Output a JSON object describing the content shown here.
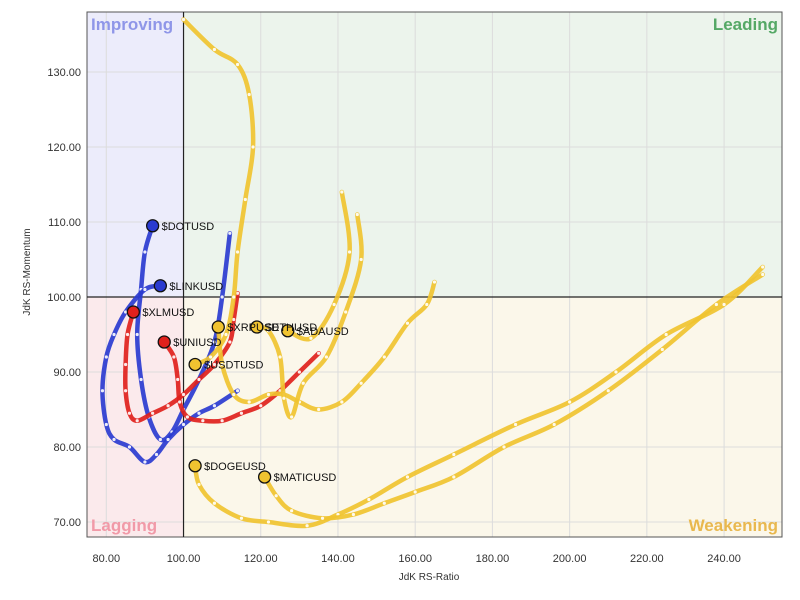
{
  "chart_data": {
    "type": "line",
    "xlabel": "JdK RS-Ratio",
    "ylabel": "JdK RS-Momentum",
    "xlim": [
      75,
      255
    ],
    "ylim": [
      68,
      138
    ],
    "center": [
      100,
      100
    ],
    "x_ticks": [
      "80.00",
      "100.00",
      "120.00",
      "140.00",
      "160.00",
      "180.00",
      "200.00",
      "220.00",
      "240.00"
    ],
    "x_tick_values": [
      80,
      100,
      120,
      140,
      160,
      180,
      200,
      220,
      240
    ],
    "y_ticks": [
      "70.00",
      "80.00",
      "90.00",
      "100.00",
      "110.00",
      "120.00",
      "130.00"
    ],
    "y_tick_values": [
      70,
      80,
      90,
      100,
      110,
      120,
      130
    ],
    "quadrants": [
      {
        "name": "Improving",
        "color": "#8f96e8",
        "fill": "#ececfb"
      },
      {
        "name": "Leading",
        "color": "#55a866",
        "fill": "#ecf4ec"
      },
      {
        "name": "Lagging",
        "color": "#f19aa8",
        "fill": "#fbeaec"
      },
      {
        "name": "Weakening",
        "color": "#e9b84e",
        "fill": "#fbf7ea"
      }
    ],
    "grid": true,
    "series": [
      {
        "name": "$DOTUSD",
        "color": "#2a3bd0",
        "head": [
          92,
          109.5
        ],
        "points": [
          [
            112,
            108.5
          ],
          [
            110,
            100
          ],
          [
            108,
            94
          ],
          [
            104,
            89
          ],
          [
            100,
            85
          ],
          [
            97,
            82
          ],
          [
            94,
            81
          ],
          [
            91,
            84
          ],
          [
            89,
            89
          ],
          [
            88,
            95
          ],
          [
            89,
            101
          ],
          [
            90,
            106
          ],
          [
            92,
            109.5
          ]
        ]
      },
      {
        "name": "$LINKUSD",
        "color": "#2a3bd0",
        "head": [
          94,
          101.5
        ],
        "points": [
          [
            114,
            87.5
          ],
          [
            108,
            85.5
          ],
          [
            104,
            84.5
          ],
          [
            100,
            83
          ],
          [
            96,
            81
          ],
          [
            93,
            79
          ],
          [
            90,
            78
          ],
          [
            86,
            80
          ],
          [
            82,
            81
          ],
          [
            80,
            83
          ],
          [
            79,
            87.5
          ],
          [
            80,
            92
          ],
          [
            82,
            95
          ],
          [
            85,
            98
          ],
          [
            90,
            101
          ],
          [
            94,
            101.5
          ]
        ]
      },
      {
        "name": "$XLMUSD",
        "color": "#e0211c",
        "head": [
          87,
          98
        ],
        "points": [
          [
            114,
            100.5
          ],
          [
            113,
            97
          ],
          [
            112,
            94
          ],
          [
            108,
            91
          ],
          [
            104,
            89
          ],
          [
            100,
            87
          ],
          [
            96,
            85.5
          ],
          [
            92,
            84.5
          ],
          [
            88,
            83.5
          ],
          [
            86,
            84.5
          ],
          [
            85,
            87.5
          ],
          [
            85,
            91
          ],
          [
            85.5,
            95
          ],
          [
            87,
            98
          ]
        ]
      },
      {
        "name": "$UNIUSD",
        "color": "#e0211c",
        "head": [
          95,
          94
        ],
        "points": [
          [
            135,
            92.5
          ],
          [
            130,
            90
          ],
          [
            125,
            87.5
          ],
          [
            120,
            85.5
          ],
          [
            115,
            84.5
          ],
          [
            110,
            83.5
          ],
          [
            105,
            83.5
          ],
          [
            101,
            84
          ],
          [
            99,
            86
          ],
          [
            98.5,
            89
          ],
          [
            97.5,
            92
          ],
          [
            95,
            94
          ]
        ]
      },
      {
        "name": "$XRPUSD",
        "color": "#f0c330",
        "head": [
          109,
          96
        ],
        "points": [
          [
            165,
            102
          ],
          [
            163,
            99
          ],
          [
            158,
            96.5
          ],
          [
            152,
            92
          ],
          [
            146,
            88.5
          ],
          [
            141,
            86
          ],
          [
            135,
            85
          ],
          [
            130,
            86
          ],
          [
            126,
            87
          ],
          [
            122,
            87
          ],
          [
            117,
            86
          ],
          [
            113,
            87
          ],
          [
            110,
            91
          ],
          [
            109,
            96
          ]
        ]
      },
      {
        "name": "$ETHUSD",
        "color": "#f0c330",
        "head": [
          119,
          96
        ],
        "points": [
          [
            145,
            111
          ],
          [
            146,
            105
          ],
          [
            142,
            98
          ],
          [
            137,
            92
          ],
          [
            131,
            88.5
          ],
          [
            128,
            84
          ],
          [
            126,
            86.5
          ],
          [
            125,
            92
          ],
          [
            122,
            95.5
          ],
          [
            119,
            96
          ]
        ]
      },
      {
        "name": "$ADAUSD",
        "color": "#f0c330",
        "head": [
          127,
          95.5
        ],
        "points": [
          [
            141,
            114
          ],
          [
            143,
            106
          ],
          [
            139,
            99
          ],
          [
            133,
            94.5
          ],
          [
            127,
            95.5
          ]
        ]
      },
      {
        "name": "$USDTUSD",
        "color": "#f0c330",
        "head": [
          103,
          91
        ],
        "points": [
          [
            100,
            137
          ],
          [
            108,
            133
          ],
          [
            114,
            131
          ],
          [
            117,
            127
          ],
          [
            118,
            120
          ],
          [
            116,
            113
          ],
          [
            114,
            106
          ],
          [
            113,
            100
          ],
          [
            111,
            95
          ],
          [
            107,
            92
          ],
          [
            103,
            91
          ]
        ]
      },
      {
        "name": "$DOGEUSD",
        "color": "#f0c330",
        "head": [
          103,
          77.5
        ],
        "points": [
          [
            250,
            104
          ],
          [
            240,
            99
          ],
          [
            225,
            95
          ],
          [
            212,
            90
          ],
          [
            200,
            86
          ],
          [
            186,
            83
          ],
          [
            170,
            79
          ],
          [
            158,
            76
          ],
          [
            148,
            73
          ],
          [
            140,
            71
          ],
          [
            132,
            69.5
          ],
          [
            122,
            70
          ],
          [
            115,
            70.5
          ],
          [
            108,
            72.5
          ],
          [
            104,
            75
          ],
          [
            103,
            77.5
          ]
        ]
      },
      {
        "name": "$MATICUSD",
        "color": "#f0c330",
        "head": [
          121,
          76
        ],
        "points": [
          [
            250,
            103
          ],
          [
            238,
            99
          ],
          [
            224,
            93
          ],
          [
            210,
            87.5
          ],
          [
            196,
            83
          ],
          [
            183,
            80
          ],
          [
            170,
            76
          ],
          [
            160,
            74
          ],
          [
            152,
            72.5
          ],
          [
            144,
            71
          ],
          [
            136,
            70.5
          ],
          [
            128,
            71.5
          ],
          [
            124,
            73.5
          ],
          [
            121,
            76
          ]
        ]
      }
    ]
  }
}
